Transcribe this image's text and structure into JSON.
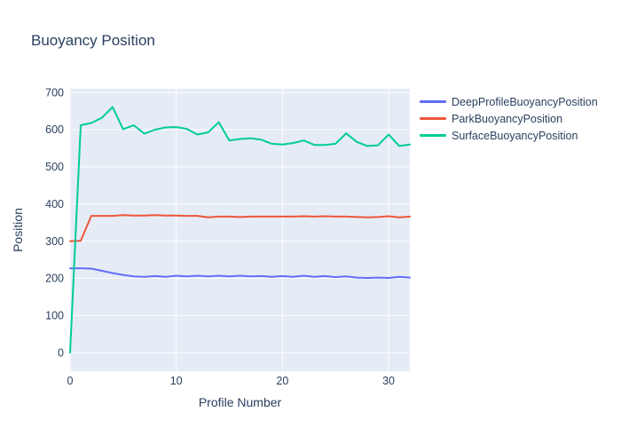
{
  "title": "Buoyancy Position",
  "chart_data": {
    "type": "line",
    "title": "Buoyancy Position",
    "xlabel": "Profile Number",
    "ylabel": "Position",
    "xlim": [
      0,
      32
    ],
    "ylim": [
      -50,
      710
    ],
    "xticks": [
      0,
      10,
      20,
      30
    ],
    "yticks": [
      0,
      100,
      200,
      300,
      400,
      500,
      600,
      700
    ],
    "grid": true,
    "legend_position": "right",
    "colors": {
      "plot_background": "#e5ecf6",
      "gridline": "#ffffff",
      "text": "#2a3f5f",
      "page_background": "#ffffff"
    },
    "x": [
      0,
      1,
      2,
      3,
      4,
      5,
      6,
      7,
      8,
      9,
      10,
      11,
      12,
      13,
      14,
      15,
      16,
      17,
      18,
      19,
      20,
      21,
      22,
      23,
      24,
      25,
      26,
      27,
      28,
      29,
      30,
      31,
      32
    ],
    "series": [
      {
        "name": "DeepProfileBuoyancyPosition",
        "color": "#636efa",
        "values": [
          227,
          227,
          226,
          220,
          214,
          209,
          205,
          204,
          206,
          204,
          207,
          205,
          207,
          205,
          207,
          205,
          207,
          205,
          206,
          204,
          206,
          204,
          207,
          204,
          206,
          203,
          205,
          202,
          201,
          202,
          201,
          204,
          202
        ]
      },
      {
        "name": "ParkBuoyancyPosition",
        "color": "#ef553b",
        "values": [
          300,
          301,
          368,
          368,
          368,
          370,
          369,
          369,
          370,
          369,
          369,
          368,
          368,
          364,
          366,
          366,
          365,
          366,
          366,
          366,
          366,
          366,
          367,
          366,
          367,
          366,
          366,
          365,
          364,
          365,
          367,
          364,
          366
        ]
      },
      {
        "name": "SurfaceBuoyancyPosition",
        "color": "#00cc96",
        "values": [
          0,
          612,
          618,
          632,
          661,
          601,
          612,
          589,
          600,
          606,
          607,
          602,
          587,
          593,
          620,
          571,
          575,
          577,
          573,
          562,
          560,
          564,
          571,
          559,
          559,
          562,
          590,
          567,
          556,
          558,
          587,
          556,
          560
        ]
      }
    ]
  }
}
